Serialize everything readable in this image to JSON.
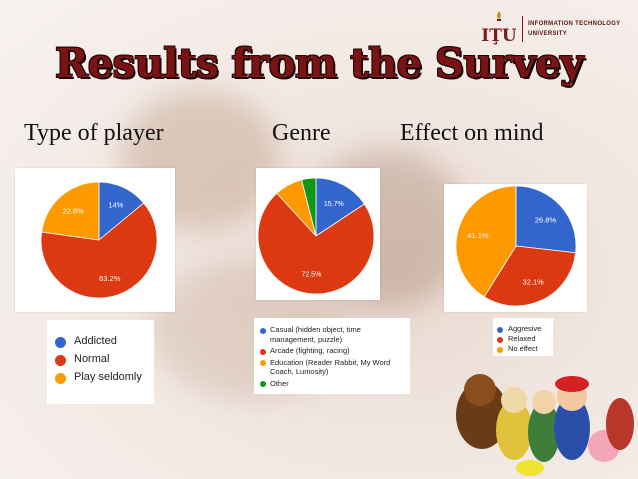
{
  "logo": {
    "mark_text": "IŢU",
    "line1": "INFORMATION TECHNOLOGY",
    "line2": "UNIVERSITY"
  },
  "title": "Results from the Survey",
  "headings": {
    "player": "Type of player",
    "genre": "Genre",
    "effect": "Effect on mind"
  },
  "chart_data": [
    {
      "type": "pie",
      "title": "Type of player",
      "categories": [
        "Addicted",
        "Normal",
        "Play seldomly"
      ],
      "values": [
        14,
        63.2,
        22.8
      ],
      "labels": [
        "14%",
        "63.2%",
        "22.8%"
      ],
      "colors": [
        "#3366cc",
        "#dc3912",
        "#ff9900"
      ],
      "legend": "bottom"
    },
    {
      "type": "pie",
      "title": "Genre",
      "categories": [
        "Casual (hidden object, time management, puzzle)",
        "Arcade (fighting, racing)",
        "Education (Reader Rabbit, My Word Coach, Lumosity)",
        "Other"
      ],
      "legend_lines": [
        [
          "Casual (hidden object, time",
          "management, puzzle)"
        ],
        [
          "Arcade (fighting, racing)"
        ],
        [
          "Education (Reader Rabbit, My Word",
          "Coach, Lumosity)"
        ],
        [
          "Other"
        ]
      ],
      "values": [
        15.7,
        72.5,
        7.8,
        4.0
      ],
      "labels": [
        "15.7%",
        "72.5%",
        "",
        ""
      ],
      "colors": [
        "#3366cc",
        "#dc3912",
        "#ff9900",
        "#109618"
      ],
      "legend": "bottom"
    },
    {
      "type": "pie",
      "title": "Effect on mind",
      "categories": [
        "Aggresive",
        "Relaxed",
        "No effect"
      ],
      "values": [
        26.8,
        32.1,
        41.1
      ],
      "labels": [
        "26.8%",
        "32.1%",
        "41.1%"
      ],
      "colors": [
        "#3366cc",
        "#dc3912",
        "#ff9900"
      ],
      "legend": "bottom"
    }
  ]
}
